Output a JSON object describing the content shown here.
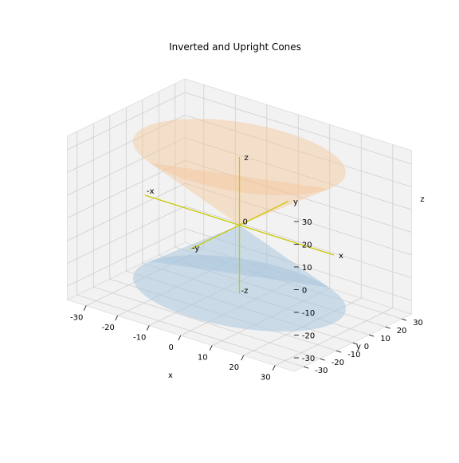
{
  "chart_data": {
    "type": "surface3d",
    "title": "Inverted and Upright Cones",
    "xlabel": "x",
    "ylabel": "y",
    "zlabel": "z",
    "xlim": [
      -30,
      30
    ],
    "ylim": [
      -30,
      30
    ],
    "zlim": [
      -30,
      30
    ],
    "x_ticks": [
      -30,
      -20,
      -10,
      0,
      10,
      20,
      30
    ],
    "y_ticks": [
      -30,
      -20,
      -10,
      0,
      10,
      20,
      30
    ],
    "z_ticks": [
      -30,
      -20,
      -10,
      0,
      10,
      20,
      30
    ],
    "grid": true,
    "surfaces": [
      {
        "shape": "cone",
        "apex": [
          0,
          0,
          0
        ],
        "direction": "up",
        "radius": 30,
        "height": 30,
        "color": "#f5c69a",
        "alpha": 0.45
      },
      {
        "shape": "cone",
        "apex": [
          0,
          0,
          0
        ],
        "direction": "down",
        "radius": 30,
        "height": 30,
        "color": "#a9c6de",
        "alpha": 0.55
      }
    ],
    "axis_lines": {
      "color": "#c8c800",
      "half_length": 30,
      "labels": {
        "x": "x",
        "neg_x": "-x",
        "y": "y",
        "neg_y": "-y",
        "z": "z",
        "neg_z": "-z",
        "origin": "0"
      }
    }
  }
}
